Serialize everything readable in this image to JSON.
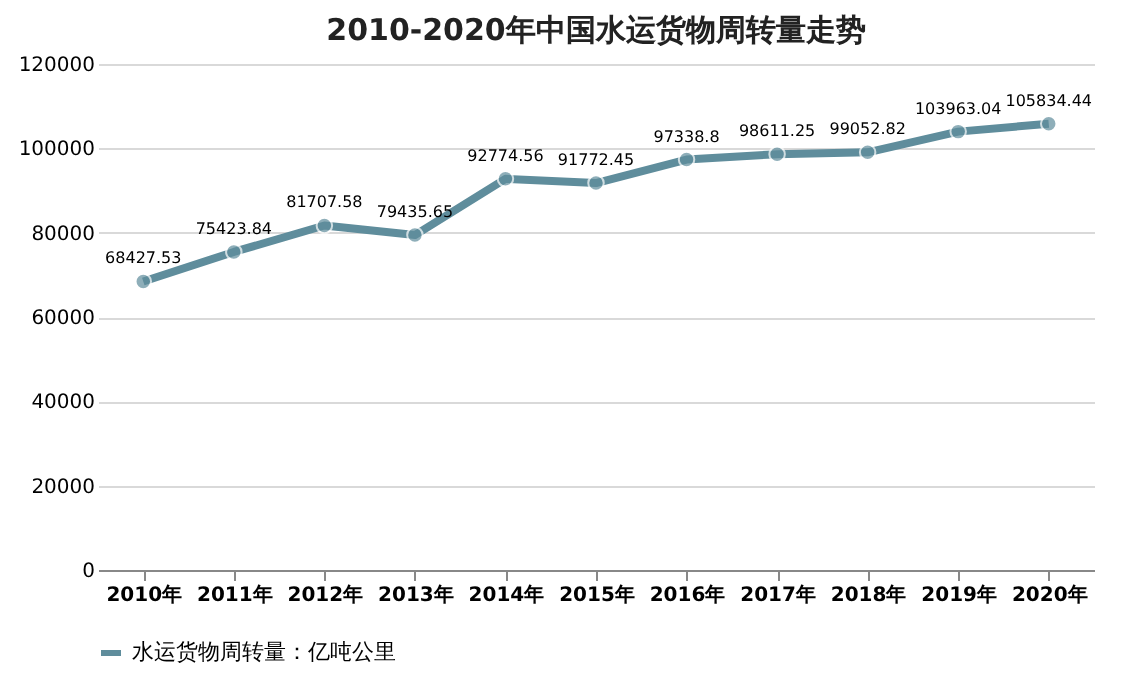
{
  "chart_data": {
    "type": "line",
    "title": "2010-2020年中国水运货物周转量走势",
    "categories": [
      "2010年",
      "2011年",
      "2012年",
      "2013年",
      "2014年",
      "2015年",
      "2016年",
      "2017年",
      "2018年",
      "2019年",
      "2020年"
    ],
    "series": [
      {
        "name": "水运货物周转量：亿吨公里",
        "color": "#5f8d9c",
        "values": [
          68427.53,
          75423.84,
          81707.58,
          79435.65,
          92774.56,
          91772.45,
          97338.8,
          98611.25,
          99052.82,
          103963.04,
          105834.44
        ]
      }
    ],
    "ylim": [
      0,
      120000
    ],
    "yticks": [
      0,
      20000,
      40000,
      60000,
      80000,
      100000,
      120000
    ],
    "grid": "y",
    "legend": "bottom",
    "marker": "circle",
    "line_style": "solid",
    "data_labels": true
  }
}
